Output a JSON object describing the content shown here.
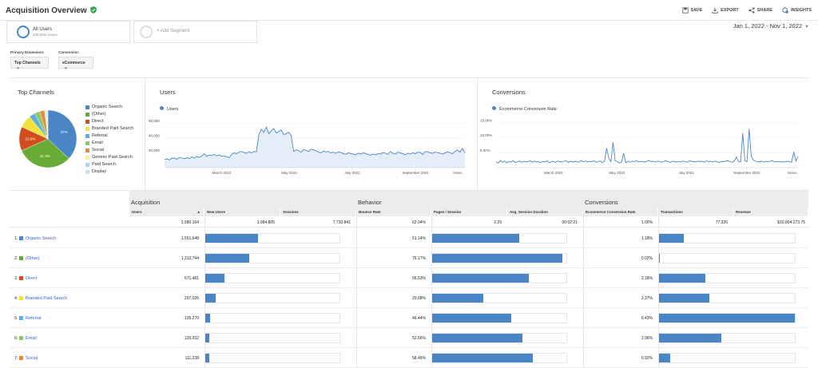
{
  "header": {
    "title": "Acquisition Overview",
    "actions": [
      {
        "label": "SAVE",
        "icon": "save-icon"
      },
      {
        "label": "EXPORT",
        "icon": "export-icon"
      },
      {
        "label": "SHARE",
        "icon": "share-icon"
      },
      {
        "label": "INSIGHTS",
        "icon": "insights-icon"
      }
    ]
  },
  "segments": {
    "all_users": {
      "name": "All Users",
      "sub": "100.00% Users"
    },
    "add_label": "+ Add Segment"
  },
  "date_range": "Jan 1, 2022 - Nov 1, 2022",
  "dimensions": {
    "primary_label": "Primary Dimension:",
    "primary_value": "Top Channels",
    "conversion_label": "Conversion:",
    "conversion_value": "eCommerce"
  },
  "panels": {
    "top_channels": {
      "title": "Top Channels",
      "legend": [
        {
          "label": "Organic Search",
          "color": "#4a86c5"
        },
        {
          "label": "(Other)",
          "color": "#6aab35"
        },
        {
          "label": "Direct",
          "color": "#d14f1e"
        },
        {
          "label": "Branded Paid Search",
          "color": "#f0e33a"
        },
        {
          "label": "Referral",
          "color": "#5ab0e0"
        },
        {
          "label": "Email",
          "color": "#8ec66a"
        },
        {
          "label": "Social",
          "color": "#e48a3c"
        },
        {
          "label": "Generic Paid Search",
          "color": "#f5ee9b"
        },
        {
          "label": "Paid Search",
          "color": "#a6d8ee"
        },
        {
          "label": "Display",
          "color": "#c6e4f0"
        }
      ],
      "slice_labels": {
        "organic": "37%",
        "other": "31.3%",
        "direct": "13.6%"
      }
    },
    "users": {
      "title": "Users",
      "series": "Users",
      "y_ticks": [
        "60,000",
        "40,000",
        "20,000"
      ],
      "x_ticks": [
        "March 2022",
        "May 2022",
        "July 2022",
        "September 2022",
        "Nove..."
      ]
    },
    "conversions": {
      "title": "Conversions",
      "series": "Ecommerce Conversion Rate",
      "y_ticks": [
        "15.00%",
        "10.00%",
        "5.00%"
      ],
      "x_ticks": [
        "March 2022",
        "May 2022",
        "July 2022",
        "September 2022",
        "Nove..."
      ]
    }
  },
  "chart_data": [
    {
      "type": "pie",
      "title": "Top Channels",
      "categories": [
        "Organic Search",
        "(Other)",
        "Direct",
        "Branded Paid Search",
        "Referral",
        "Email",
        "Social",
        "Generic Paid Search",
        "Paid Search",
        "Display"
      ],
      "values": [
        37,
        31.3,
        13.6,
        7.1,
        3.4,
        3.0,
        2.7,
        1.0,
        0.5,
        0.4
      ],
      "colors": [
        "#4a86c5",
        "#6aab35",
        "#d14f1e",
        "#f0e33a",
        "#5ab0e0",
        "#8ec66a",
        "#e48a3c",
        "#f5ee9b",
        "#a6d8ee",
        "#c6e4f0"
      ]
    },
    {
      "type": "area",
      "title": "Users",
      "series": [
        {
          "name": "Users",
          "values": [
            11000,
            12000,
            10500,
            13000,
            12500,
            11500,
            14000,
            13000,
            12000,
            13500,
            12500,
            14500,
            13000,
            15000,
            14000,
            16000,
            19000,
            15500,
            17000,
            16500,
            18000,
            16000,
            17500,
            15500,
            16000,
            15000,
            13500,
            18000,
            20000,
            19000,
            21000,
            22000,
            20500,
            19500,
            21500,
            20000,
            22000,
            21500,
            45000,
            52000,
            48000,
            55000,
            46000,
            50000,
            53000,
            47000,
            49000,
            51000,
            45000,
            46000,
            48000,
            44000,
            22000,
            24000,
            23000,
            21000,
            24500,
            23500,
            22000,
            25000,
            24000,
            23000,
            21000,
            20000,
            22500,
            21500,
            22000,
            20000,
            21000,
            19500,
            21500,
            20500,
            19000,
            18000,
            20000,
            19000,
            18500,
            17500,
            19500,
            18500,
            20000,
            19000,
            18000,
            17000,
            18500,
            17500,
            19000,
            18500,
            20500,
            19500,
            18000,
            22000,
            19500,
            18500,
            21000,
            20000,
            19000,
            17500,
            19500,
            18500,
            20000,
            19000,
            21000,
            20500,
            18000,
            22000,
            21500,
            20000,
            19500,
            21000,
            20500,
            19500,
            18500,
            20000,
            21500,
            20000,
            19000,
            22000,
            24000,
            21000,
            26000,
            20000
          ]
        }
      ],
      "ylim": [
        0,
        65000
      ]
    },
    {
      "type": "line",
      "title": "Conversions",
      "series": [
        {
          "name": "Ecommerce Conversion Rate",
          "values": [
            2.0,
            1.5,
            2.4,
            1.8,
            2.2,
            1.6,
            2.1,
            1.9,
            2.3,
            1.7,
            2.0,
            2.2,
            1.8,
            2.1,
            1.9,
            2.0,
            2.4,
            1.8,
            2.2,
            1.9,
            2.0,
            1.7,
            2.1,
            1.9,
            2.3,
            1.6,
            2.0,
            2.1,
            1.8,
            2.2,
            2.0,
            1.9,
            2.1,
            2.3,
            1.7,
            2.2,
            1.9,
            2.0,
            2.1,
            1.8,
            2.4,
            2.0,
            2.2,
            1.9,
            2.1,
            2.0,
            2.3,
            1.8,
            2.0,
            2.2,
            1.7,
            2.1,
            6.5,
            3.2,
            2.0,
            8.5,
            2.4,
            2.0,
            1.6,
            1.8,
            4.8,
            1.7,
            2.1,
            1.8,
            2.2,
            2.0,
            2.3,
            1.9,
            2.1,
            2.0,
            1.8,
            2.2,
            2.4,
            2.0,
            2.1,
            1.9,
            2.2,
            2.0,
            1.8,
            2.1,
            2.3,
            2.0,
            1.7,
            2.2,
            2.0,
            1.9,
            2.1,
            1.9,
            2.2,
            2.0,
            1.8,
            2.3,
            2.1,
            2.0,
            1.9,
            2.2,
            2.0,
            2.1,
            1.8,
            2.3,
            2.0,
            2.1,
            1.9,
            2.2,
            2.0,
            1.7,
            2.1,
            2.0,
            2.2,
            2.3,
            2.0,
            1.8,
            2.2,
            3.5,
            2.0,
            1.9,
            11.5,
            2.4,
            2.0,
            13.0,
            3.8,
            2.5,
            2.2,
            1.9,
            2.0,
            2.2,
            1.8,
            2.1,
            1.9,
            2.2,
            2.3,
            1.9,
            2.0,
            2.1,
            1.8,
            2.0,
            1.9,
            2.1,
            2.0,
            1.8,
            5.2,
            2.2,
            3.8
          ]
        }
      ],
      "ylim": [
        0,
        16
      ]
    }
  ],
  "table": {
    "groups": {
      "acquisition": "Acquisition",
      "behavior": "Behavior",
      "conversions": "Conversions"
    },
    "columns": {
      "users": "Users",
      "new_users": "New Users",
      "sessions": "Sessions",
      "bounce_rate": "Bounce Rate",
      "pages_session": "Pages / Session",
      "avg_duration": "Avg. Session Duration",
      "conv_rate": "Ecommerce Conversion Rate",
      "transactions": "Transactions",
      "revenue": "Revenue"
    },
    "totals": {
      "users": "3,980,164",
      "new_users": "3,984,805",
      "sessions": "7,730,841",
      "bounce_rate": "62.04%",
      "pages_session": "2.29",
      "avg_duration": "00:02:21",
      "conv_rate": "1.00%",
      "transactions": "77,326",
      "revenue": "$10,804,273.75"
    },
    "rows": [
      {
        "num": "1",
        "name": "Organic Search",
        "color": "#4a86c5",
        "users": "1,551,648",
        "new_users_bar": 0.39,
        "bounce": "51.14%",
        "pages_bar": 0.65,
        "conv": "1.18%",
        "trans_bar": 0.18
      },
      {
        "num": "2",
        "name": "(Other)",
        "color": "#6aab35",
        "users": "1,312,744",
        "new_users_bar": 0.33,
        "bounce": "76.17%",
        "pages_bar": 0.97,
        "conv": "0.02%",
        "trans_bar": 0.005
      },
      {
        "num": "3",
        "name": "Direct",
        "color": "#d14f1e",
        "users": "571,481",
        "new_users_bar": 0.14,
        "bounce": "56.53%",
        "pages_bar": 0.72,
        "conv": "2.18%",
        "trans_bar": 0.34
      },
      {
        "num": "4",
        "name": "Branded Paid Search",
        "color": "#f0e33a",
        "users": "297,026",
        "new_users_bar": 0.075,
        "bounce": "29.68%",
        "pages_bar": 0.38,
        "conv": "2.37%",
        "trans_bar": 0.37
      },
      {
        "num": "5",
        "name": "Referral",
        "color": "#5ab0e0",
        "users": "135,270",
        "new_users_bar": 0.034,
        "bounce": "46.44%",
        "pages_bar": 0.59,
        "conv": "6.43%",
        "trans_bar": 1.0
      },
      {
        "num": "6",
        "name": "Email",
        "color": "#8ec66a",
        "users": "126,932",
        "new_users_bar": 0.032,
        "bounce": "52.66%",
        "pages_bar": 0.67,
        "conv": "2.96%",
        "trans_bar": 0.46
      },
      {
        "num": "7",
        "name": "Social",
        "color": "#e48a3c",
        "users": "111,238",
        "new_users_bar": 0.028,
        "bounce": "58.45%",
        "pages_bar": 0.75,
        "conv": "0.92%",
        "trans_bar": 0.08
      }
    ]
  }
}
